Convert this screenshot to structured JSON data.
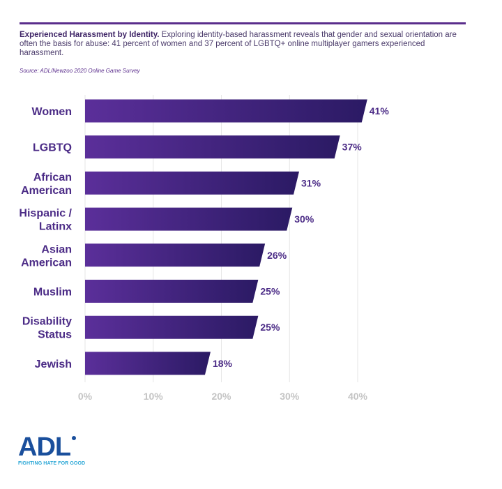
{
  "caption": {
    "title": "Experienced Harassment by Identity.",
    "body": " Exploring identity-based harassment reveals that gender and sexual orientation are often the basis for abuse: 41 percent of women and 37 percent of LGBTQ+ online multiplayer gamers experienced harassment.",
    "source": "Source: ADL/Newzoo 2020 Online Game Survey"
  },
  "logo": {
    "name": "ADL",
    "tagline": "FIGHTING HATE FOR GOOD"
  },
  "colors": {
    "bar_left": "#5b2f9a",
    "bar_right": "#2b1a64",
    "category_label": "#4b2b86",
    "value_label": "#4b2b86",
    "tick_label": "#c4c4c4",
    "grid": "#e6e6e6"
  },
  "chart_data": {
    "type": "bar",
    "orientation": "horizontal",
    "title": "",
    "xlabel": "",
    "ylabel": "",
    "categories": [
      [
        "Women"
      ],
      [
        "LGBTQ"
      ],
      [
        "African",
        "American"
      ],
      [
        "Hispanic /",
        "Latinx"
      ],
      [
        "Asian",
        "American"
      ],
      [
        "Muslim"
      ],
      [
        "Disability",
        "Status"
      ],
      [
        "Jewish"
      ]
    ],
    "values": [
      41,
      37,
      31,
      30,
      26,
      25,
      25,
      18
    ],
    "value_labels": [
      "41%",
      "37%",
      "31%",
      "30%",
      "26%",
      "25%",
      "25%",
      "18%"
    ],
    "xlim": [
      0,
      40
    ],
    "xticks": [
      0,
      10,
      20,
      30,
      40
    ],
    "xtick_labels": [
      "0%",
      "10%",
      "20%",
      "30%",
      "40%"
    ],
    "grid": true,
    "legend": "none"
  }
}
